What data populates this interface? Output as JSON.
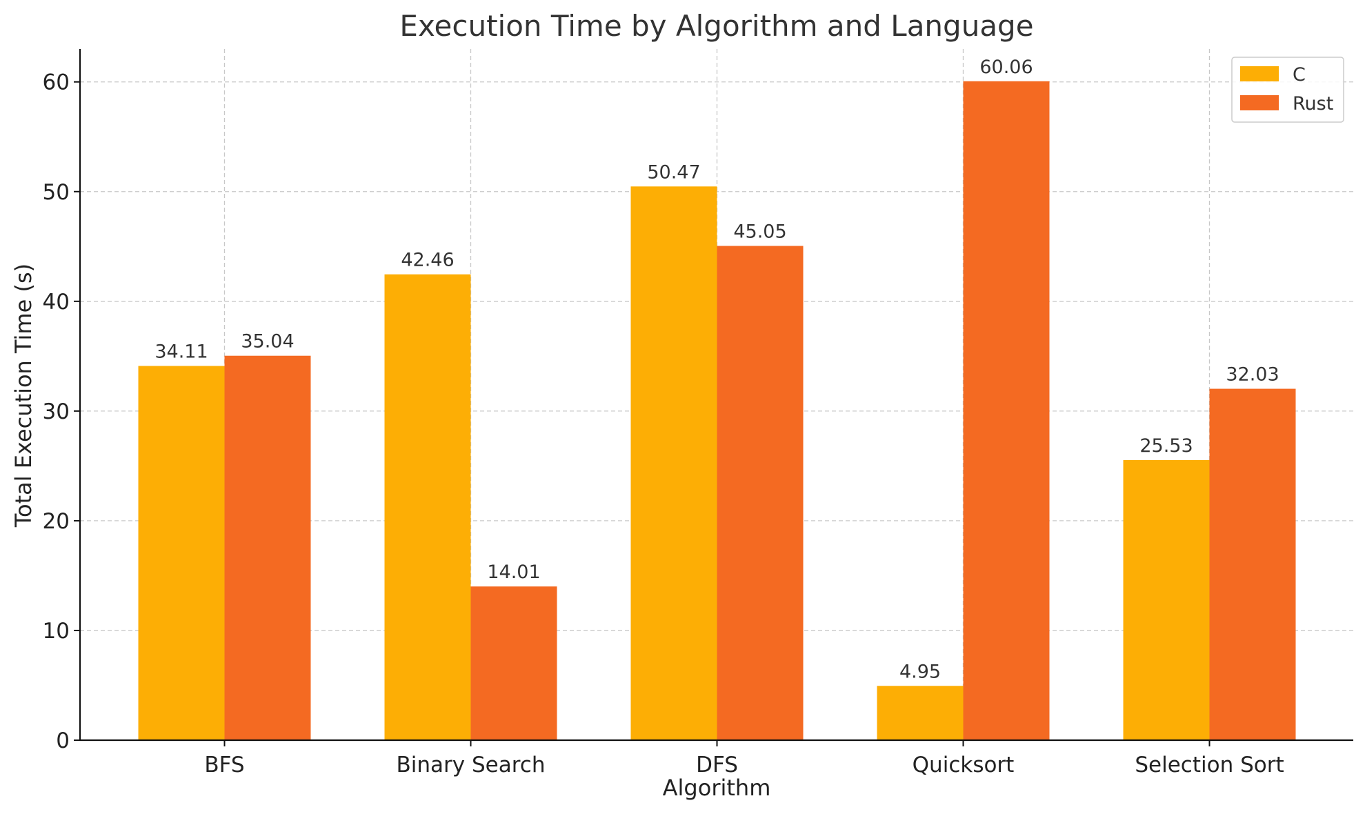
{
  "chart_data": {
    "type": "bar",
    "title": "Execution Time by Algorithm and Language",
    "xlabel": "Algorithm",
    "ylabel": "Total Execution Time (s)",
    "categories": [
      "BFS",
      "Binary Search",
      "DFS",
      "Quicksort",
      "Selection Sort"
    ],
    "series": [
      {
        "name": "C",
        "color": "#FDAE05",
        "values": [
          34.11,
          42.46,
          50.47,
          4.95,
          25.53
        ]
      },
      {
        "name": "Rust",
        "color": "#F46A22",
        "values": [
          35.04,
          14.01,
          45.05,
          60.06,
          32.03
        ]
      }
    ],
    "ylim": [
      0,
      63
    ],
    "yticks": [
      0,
      10,
      20,
      30,
      40,
      50,
      60
    ],
    "grid": true,
    "legend_position": "top-right"
  }
}
